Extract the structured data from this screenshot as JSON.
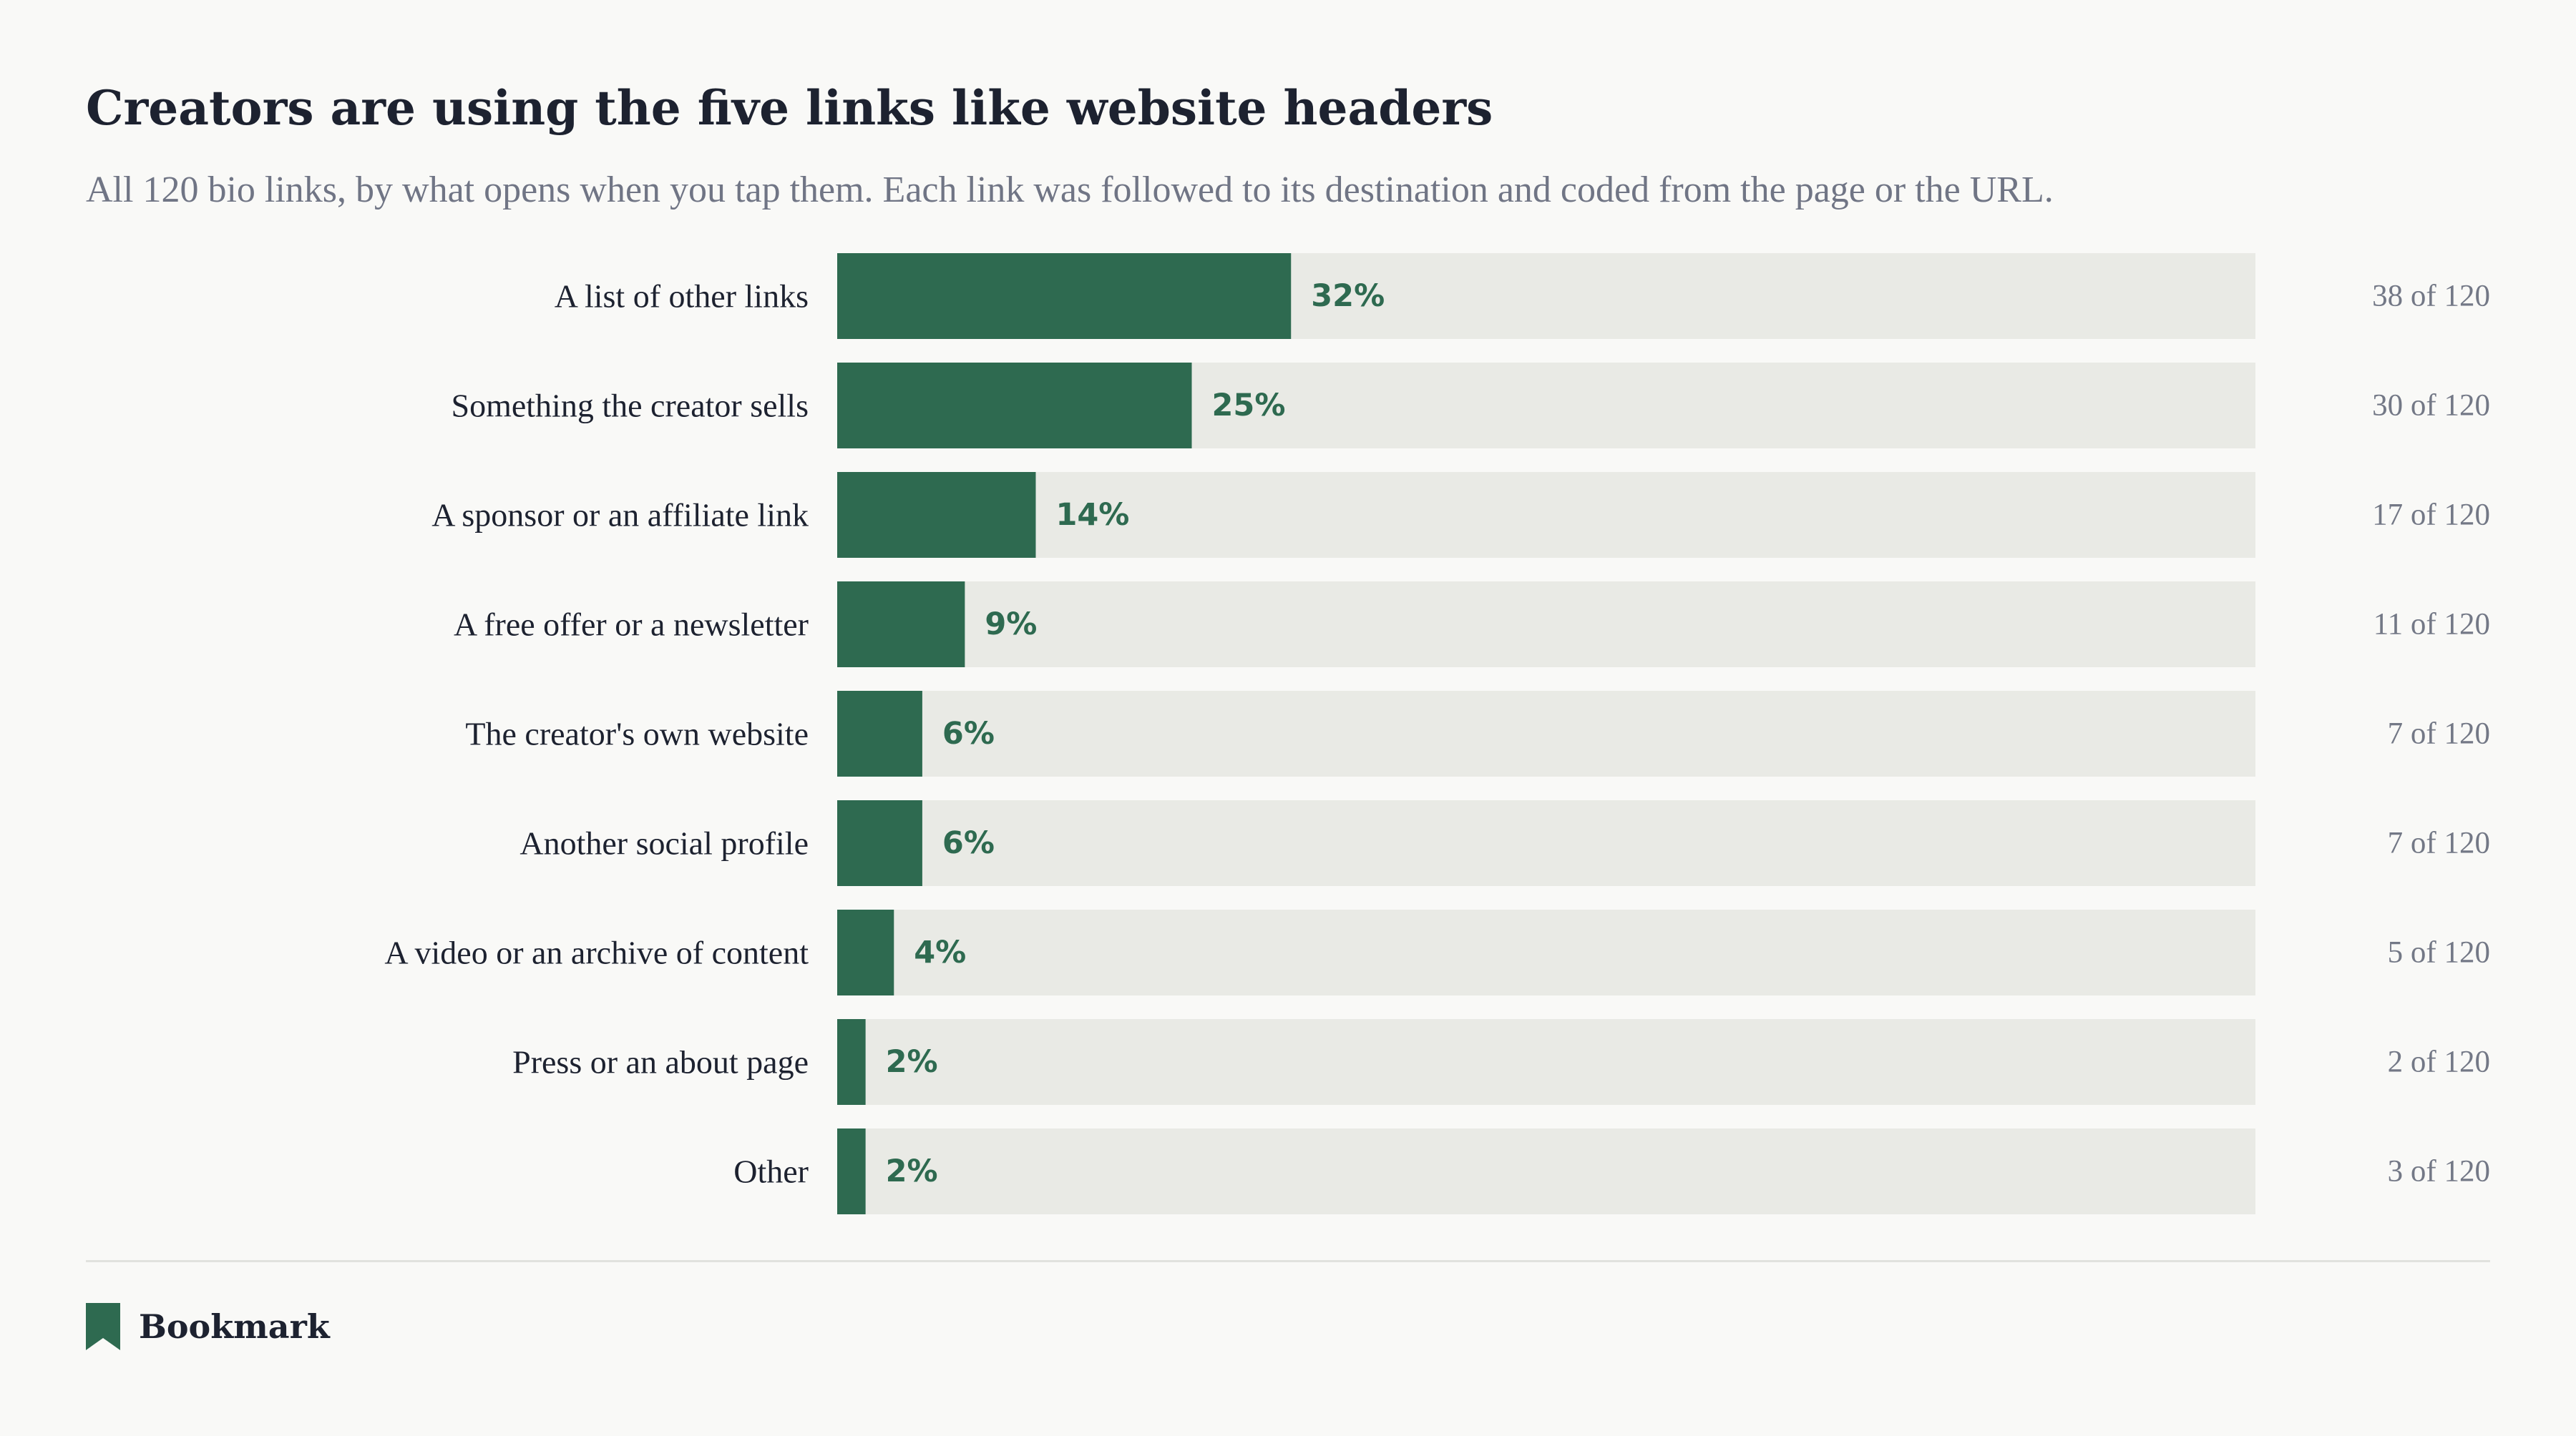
{
  "title": "Creators are using the five links like website headers",
  "subtitle": "All 120 bio links, by what opens when you tap them. Each link was followed to its destination and coded from the page or the URL.",
  "brand": {
    "name": "Bookmark",
    "icon": "bookmark-icon"
  },
  "colors": {
    "bar": "#2e6a50",
    "track": "#e9eae5",
    "background": "#f9f9f7",
    "text": "#1d2230",
    "muted": "#737886"
  },
  "chart_data": {
    "type": "bar",
    "orientation": "horizontal",
    "xlim": [
      0,
      100
    ],
    "grid": false,
    "legend": "none",
    "categories": [
      "A list of other links",
      "Something the creator sells",
      "A sponsor or an affiliate link",
      "A free offer or a newsletter",
      "The creator's own website",
      "Another social profile",
      "A video or an archive of content",
      "Press or an about page",
      "Other"
    ],
    "values": [
      32,
      25,
      14,
      9,
      6,
      6,
      4,
      2,
      2
    ],
    "value_labels": [
      "32%",
      "25%",
      "14%",
      "9%",
      "6%",
      "6%",
      "4%",
      "2%",
      "2%"
    ],
    "count_labels": [
      "38 of 120",
      "30 of 120",
      "17 of 120",
      "11 of 120",
      "7 of 120",
      "7 of 120",
      "5 of 120",
      "2 of 120",
      "3 of 120"
    ]
  }
}
